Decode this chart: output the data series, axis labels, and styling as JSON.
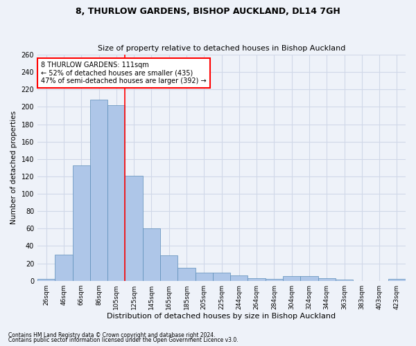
{
  "title1": "8, THURLOW GARDENS, BISHOP AUCKLAND, DL14 7GH",
  "title2": "Size of property relative to detached houses in Bishop Auckland",
  "xlabel": "Distribution of detached houses by size in Bishop Auckland",
  "ylabel": "Number of detached properties",
  "categories": [
    "26sqm",
    "46sqm",
    "66sqm",
    "86sqm",
    "105sqm",
    "125sqm",
    "145sqm",
    "165sqm",
    "185sqm",
    "205sqm",
    "225sqm",
    "244sqm",
    "264sqm",
    "284sqm",
    "304sqm",
    "324sqm",
    "344sqm",
    "363sqm",
    "383sqm",
    "403sqm",
    "423sqm"
  ],
  "values": [
    2,
    30,
    133,
    208,
    202,
    121,
    60,
    29,
    15,
    9,
    9,
    6,
    3,
    2,
    5,
    5,
    3,
    1,
    0,
    0,
    2
  ],
  "bar_color": "#aec6e8",
  "bar_edge_color": "#5b8db8",
  "grid_color": "#d0d8e8",
  "background_color": "#eef2f9",
  "red_line_x": 4.5,
  "annotation_text": "8 THURLOW GARDENS: 111sqm\n← 52% of detached houses are smaller (435)\n47% of semi-detached houses are larger (392) →",
  "annotation_box_color": "white",
  "annotation_box_edge": "red",
  "footer1": "Contains HM Land Registry data © Crown copyright and database right 2024.",
  "footer2": "Contains public sector information licensed under the Open Government Licence v3.0.",
  "ylim": [
    0,
    260
  ],
  "yticks": [
    0,
    20,
    40,
    60,
    80,
    100,
    120,
    140,
    160,
    180,
    200,
    220,
    240,
    260
  ]
}
